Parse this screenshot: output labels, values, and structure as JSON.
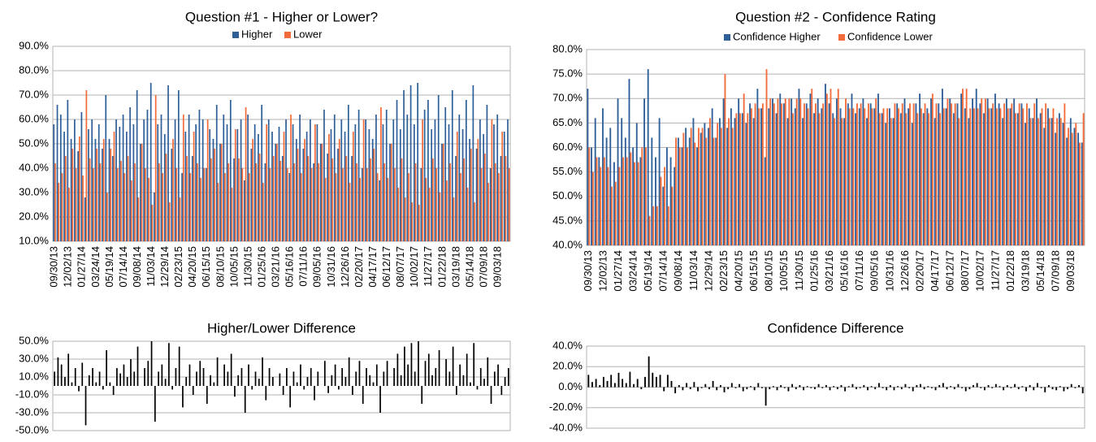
{
  "chart_data": [
    {
      "type": "bar",
      "title": "Question #1 - Higher or Lower?",
      "categories": [
        "09/30/13",
        null,
        null,
        null,
        "12/02/13",
        null,
        null,
        null,
        "01/27/14",
        null,
        null,
        null,
        "03/24/14",
        null,
        null,
        null,
        "05/19/14",
        null,
        null,
        null,
        "07/14/14",
        null,
        null,
        null,
        "09/08/14",
        null,
        null,
        null,
        "11/03/14",
        null,
        null,
        null,
        "12/29/14",
        null,
        null,
        null,
        "02/23/15",
        null,
        null,
        null,
        "04/20/15",
        null,
        null,
        null,
        "06/15/15",
        null,
        null,
        null,
        "08/10/15",
        null,
        null,
        null,
        "10/05/15",
        null,
        null,
        null,
        "11/30/15",
        null,
        null,
        null,
        "01/25/16",
        null,
        null,
        null,
        "03/21/16",
        null,
        null,
        null,
        "05/16/16",
        null,
        null,
        null,
        "07/11/16",
        null,
        null,
        null,
        "09/05/16",
        null,
        null,
        null,
        "10/31/16",
        null,
        null,
        null,
        "12/26/16",
        null,
        null,
        null,
        "02/20/17",
        null,
        null,
        null,
        "04/17/17",
        null,
        null,
        null,
        "06/12/17",
        null,
        null,
        null,
        "08/07/17",
        null,
        null,
        null,
        "10/02/17",
        null,
        null,
        null,
        "11/27/17",
        null,
        null,
        null,
        "01/22/18",
        null,
        null,
        null,
        "03/19/18",
        null,
        null,
        null,
        "05/14/18",
        null,
        null,
        null,
        "07/09/18",
        null,
        null,
        null,
        "09/03/18",
        null,
        null,
        null
      ],
      "series": [
        {
          "name": "Higher",
          "color": "#2f5f98",
          "values": [
            58,
            66,
            62,
            55,
            68,
            52,
            60,
            47,
            63,
            28,
            56,
            60,
            52,
            58,
            48,
            70,
            52,
            45,
            60,
            57,
            62,
            55,
            65,
            58,
            72,
            50,
            60,
            64,
            75,
            30,
            58,
            62,
            54,
            74,
            48,
            60,
            72,
            38,
            55,
            62,
            45,
            58,
            64,
            60,
            40,
            56,
            52,
            66,
            50,
            62,
            58,
            68,
            44,
            56,
            60,
            35,
            62,
            48,
            58,
            54,
            66,
            42,
            60,
            55,
            50,
            57,
            45,
            60,
            38,
            58,
            52,
            62,
            48,
            55,
            60,
            42,
            58,
            50,
            64,
            46,
            56,
            62,
            48,
            60,
            55,
            66,
            45,
            58,
            64,
            40,
            60,
            56,
            52,
            62,
            35,
            58,
            64,
            50,
            60,
            68,
            56,
            72,
            62,
            74,
            58,
            75,
            40,
            64,
            68,
            56,
            60,
            70,
            50,
            65,
            58,
            72,
            45,
            62,
            56,
            68,
            52,
            74,
            48,
            60,
            54,
            66,
            40,
            58,
            62,
            45,
            55,
            60
          ]
        },
        {
          "name": "Lower",
          "color": "#f26b3a",
          "values": [
            42,
            34,
            38,
            45,
            32,
            48,
            40,
            53,
            37,
            72,
            44,
            40,
            48,
            42,
            52,
            30,
            48,
            55,
            40,
            43,
            38,
            45,
            35,
            42,
            28,
            50,
            40,
            36,
            25,
            70,
            42,
            38,
            46,
            26,
            52,
            40,
            28,
            62,
            45,
            38,
            55,
            42,
            36,
            40,
            60,
            44,
            48,
            34,
            50,
            38,
            42,
            32,
            56,
            44,
            40,
            65,
            38,
            52,
            42,
            46,
            34,
            58,
            40,
            45,
            50,
            43,
            55,
            40,
            62,
            42,
            48,
            38,
            52,
            45,
            40,
            58,
            42,
            50,
            36,
            54,
            44,
            38,
            52,
            40,
            45,
            34,
            55,
            42,
            36,
            60,
            40,
            44,
            48,
            38,
            65,
            42,
            36,
            50,
            40,
            32,
            44,
            28,
            38,
            26,
            42,
            25,
            60,
            36,
            32,
            44,
            40,
            30,
            50,
            35,
            42,
            28,
            55,
            38,
            44,
            32,
            48,
            26,
            52,
            40,
            46,
            34,
            60,
            42,
            38,
            55,
            45,
            40
          ]
        }
      ],
      "ylim": [
        10,
        90
      ],
      "yticks": [
        {
          "value": 10,
          "label": "10.0%"
        },
        {
          "value": 20,
          "label": "20.0%"
        },
        {
          "value": 30,
          "label": "30.0%"
        },
        {
          "value": 40,
          "label": "40.0%"
        },
        {
          "value": 50,
          "label": "50.0%"
        },
        {
          "value": 60,
          "label": "60.0%"
        },
        {
          "value": 70,
          "label": "70.0%"
        },
        {
          "value": 80,
          "label": "80.0%"
        },
        {
          "value": 90,
          "label": "90.0%"
        }
      ],
      "grid": true
    },
    {
      "type": "bar",
      "title": "Question #2 - Confidence Rating",
      "categories": [
        "09/30/13",
        null,
        null,
        null,
        "12/02/13",
        null,
        null,
        null,
        "01/27/14",
        null,
        null,
        null,
        "03/24/14",
        null,
        null,
        null,
        "05/19/14",
        null,
        null,
        null,
        "07/14/14",
        null,
        null,
        null,
        "09/08/14",
        null,
        null,
        null,
        "11/03/14",
        null,
        null,
        null,
        "12/29/14",
        null,
        null,
        null,
        "02/23/15",
        null,
        null,
        null,
        "04/20/15",
        null,
        null,
        null,
        "06/15/15",
        null,
        null,
        null,
        "08/10/15",
        null,
        null,
        null,
        "10/05/15",
        null,
        null,
        null,
        "11/30/15",
        null,
        null,
        null,
        "01/25/16",
        null,
        null,
        null,
        "03/21/16",
        null,
        null,
        null,
        "05/16/16",
        null,
        null,
        null,
        "07/11/16",
        null,
        null,
        null,
        "09/05/16",
        null,
        null,
        null,
        "10/31/16",
        null,
        null,
        null,
        "12/26/16",
        null,
        null,
        null,
        "02/20/17",
        null,
        null,
        null,
        "04/17/17",
        null,
        null,
        null,
        "06/12/17",
        null,
        null,
        null,
        "08/07/17",
        null,
        null,
        null,
        "10/02/17",
        null,
        null,
        null,
        "11/27/17",
        null,
        null,
        null,
        "01/22/18",
        null,
        null,
        null,
        "03/19/18",
        null,
        null,
        null,
        "05/14/18",
        null,
        null,
        null,
        "07/09/18",
        null,
        null,
        null,
        "09/03/18",
        null,
        null,
        null
      ],
      "series": [
        {
          "name": "Confidence Higher",
          "color": "#2f5f98",
          "values": [
            72,
            60,
            66,
            58,
            68,
            62,
            64,
            57,
            70,
            66,
            62,
            74,
            60,
            65,
            58,
            70,
            76,
            62,
            58,
            66,
            52,
            60,
            58,
            56,
            62,
            60,
            64,
            62,
            66,
            60,
            63,
            65,
            64,
            68,
            62,
            66,
            70,
            64,
            68,
            66,
            70,
            67,
            65,
            69,
            66,
            72,
            68,
            58,
            68,
            70,
            67,
            71,
            69,
            66,
            70,
            68,
            72,
            66,
            69,
            71,
            67,
            70,
            68,
            73,
            69,
            67,
            70,
            68,
            66,
            69,
            71,
            67,
            68,
            70,
            66,
            69,
            68,
            71,
            67,
            65,
            68,
            66,
            69,
            67,
            70,
            68,
            65,
            69,
            71,
            67,
            68,
            70,
            66,
            69,
            72,
            68,
            70,
            67,
            69,
            71,
            68,
            66,
            70,
            72,
            69,
            67,
            70,
            68,
            71,
            69,
            66,
            70,
            68,
            70,
            67,
            69,
            65,
            68,
            66,
            70,
            67,
            64,
            68,
            66,
            63,
            67,
            65,
            62,
            66,
            64,
            63,
            61
          ]
        },
        {
          "name": "Confidence Lower",
          "color": "#f26b3a",
          "values": [
            60,
            55,
            58,
            56,
            58,
            56,
            52,
            53,
            56,
            58,
            58,
            59,
            57,
            57,
            60,
            60,
            46,
            48,
            48,
            54,
            56,
            48,
            52,
            62,
            60,
            63,
            60,
            64,
            61,
            64,
            64,
            62,
            66,
            62,
            65,
            64,
            75,
            66,
            64,
            67,
            67,
            71,
            67,
            68,
            69,
            68,
            69,
            76,
            70,
            69,
            70,
            69,
            70,
            70,
            67,
            70,
            70,
            69,
            68,
            72,
            69,
            67,
            69,
            71,
            72,
            66,
            72,
            66,
            70,
            68,
            68,
            69,
            69,
            68,
            69,
            68,
            70,
            67,
            68,
            68,
            66,
            69,
            68,
            69,
            67,
            69,
            69,
            67,
            68,
            69,
            67,
            71,
            69,
            67,
            68,
            70,
            69,
            69,
            66,
            72,
            72,
            68,
            68,
            68,
            70,
            70,
            68,
            69,
            68,
            68,
            69,
            68,
            69,
            67,
            69,
            68,
            69,
            66,
            69,
            66,
            68,
            69,
            66,
            68,
            66,
            66,
            69,
            64,
            63,
            65,
            61,
            67
          ]
        }
      ],
      "ylim": [
        40,
        80
      ],
      "yticks": [
        {
          "value": 40,
          "label": "40.0%"
        },
        {
          "value": 45,
          "label": "45.0%"
        },
        {
          "value": 50,
          "label": "50.0%"
        },
        {
          "value": 55,
          "label": "55.0%"
        },
        {
          "value": 60,
          "label": "60.0%"
        },
        {
          "value": 65,
          "label": "65.0%"
        },
        {
          "value": 70,
          "label": "70.0%"
        },
        {
          "value": 75,
          "label": "75.0%"
        },
        {
          "value": 80,
          "label": "80.0%"
        }
      ],
      "grid": true
    },
    {
      "type": "bar",
      "title": "Higher/Lower Difference",
      "color": "#000000",
      "values": [
        16,
        32,
        24,
        10,
        36,
        4,
        20,
        -6,
        26,
        -44,
        12,
        20,
        4,
        16,
        -4,
        40,
        4,
        -10,
        20,
        14,
        24,
        10,
        30,
        16,
        44,
        0,
        20,
        28,
        50,
        -40,
        16,
        24,
        8,
        48,
        -4,
        20,
        44,
        -24,
        10,
        24,
        -10,
        16,
        28,
        20,
        -20,
        12,
        4,
        32,
        0,
        24,
        16,
        36,
        -12,
        12,
        20,
        -30,
        24,
        -4,
        16,
        8,
        32,
        -16,
        20,
        10,
        0,
        14,
        -10,
        20,
        -24,
        16,
        4,
        24,
        -4,
        10,
        20,
        -16,
        16,
        0,
        28,
        -8,
        12,
        24,
        -4,
        20,
        10,
        32,
        -10,
        16,
        28,
        -20,
        20,
        12,
        4,
        24,
        -30,
        16,
        28,
        0,
        20,
        36,
        12,
        44,
        24,
        48,
        16,
        50,
        -20,
        28,
        36,
        12,
        20,
        40,
        0,
        30,
        16,
        44,
        -10,
        24,
        12,
        36,
        4,
        48,
        -4,
        20,
        8,
        32,
        -20,
        16,
        24,
        -10,
        10,
        20
      ],
      "ylim": [
        -50,
        50
      ],
      "yticks": [
        {
          "value": -50,
          "label": "-50.0%"
        },
        {
          "value": -30,
          "label": "-30.0%"
        },
        {
          "value": -10,
          "label": "-10.0%"
        },
        {
          "value": 10,
          "label": "10.0%"
        },
        {
          "value": 30,
          "label": "30.0%"
        },
        {
          "value": 50,
          "label": "50.0%"
        }
      ],
      "grid": true
    },
    {
      "type": "bar",
      "title": "Confidence Difference",
      "color": "#000000",
      "values": [
        12,
        5,
        8,
        2,
        10,
        6,
        12,
        4,
        14,
        8,
        4,
        15,
        3,
        8,
        -2,
        10,
        30,
        14,
        10,
        12,
        -4,
        12,
        6,
        -6,
        2,
        -3,
        4,
        -2,
        5,
        -4,
        -1,
        3,
        -2,
        6,
        -3,
        2,
        -5,
        -2,
        4,
        -1,
        3,
        -4,
        -2,
        1,
        -3,
        4,
        -1,
        -18,
        -2,
        1,
        -3,
        2,
        -1,
        -4,
        3,
        -2,
        2,
        -3,
        1,
        -1,
        -2,
        3,
        -1,
        2,
        -3,
        1,
        -2,
        2,
        -4,
        1,
        3,
        -2,
        -1,
        2,
        -3,
        1,
        -2,
        4,
        -1,
        -3,
        2,
        -3,
        1,
        -2,
        3,
        -1,
        -4,
        2,
        3,
        -2,
        1,
        -1,
        -3,
        2,
        4,
        -2,
        1,
        -2,
        3,
        -1,
        -4,
        -2,
        2,
        4,
        -1,
        -3,
        2,
        -1,
        3,
        1,
        -3,
        2,
        -1,
        3,
        -2,
        1,
        -4,
        2,
        -3,
        4,
        -1,
        -5,
        2,
        -2,
        -3,
        1,
        -4,
        -2,
        3,
        -1,
        2,
        -6
      ],
      "ylim": [
        -40,
        40
      ],
      "yticks": [
        {
          "value": -40,
          "label": "-40.0%"
        },
        {
          "value": -20,
          "label": "-20.0%"
        },
        {
          "value": 0,
          "label": "0.0%"
        },
        {
          "value": 20,
          "label": "20.0%"
        },
        {
          "value": 40,
          "label": "40.0%"
        }
      ],
      "grid": true
    }
  ]
}
